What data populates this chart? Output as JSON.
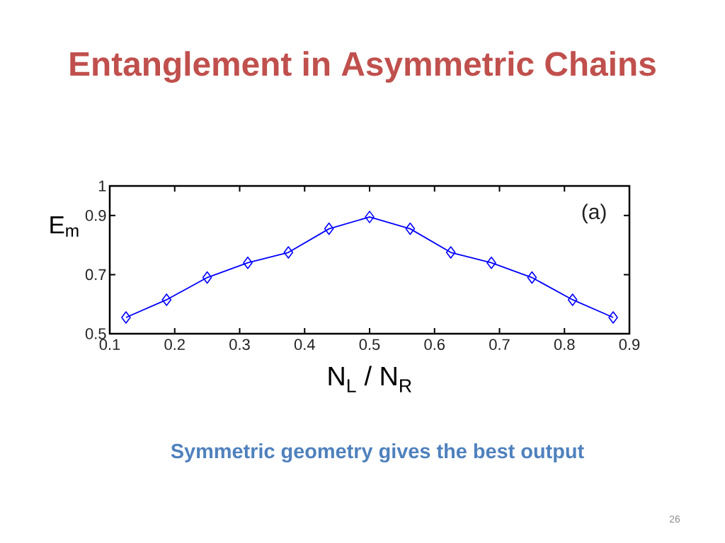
{
  "chart_data": {
    "type": "line",
    "title": "Entanglement in Asymmetric Chains",
    "xlabel": "N$_{L}$ / N$_{R}$",
    "ylabel": "E$_{m}$",
    "x": [
      0.125,
      0.1875,
      0.25,
      0.3125,
      0.375,
      0.4375,
      0.5,
      0.5625,
      0.625,
      0.6875,
      0.75,
      0.8125,
      0.875
    ],
    "series": [
      {
        "color": "#0000ff",
        "values": [
          0.555,
          0.615,
          0.69,
          0.74,
          0.775,
          0.855,
          0.895,
          0.855,
          0.775,
          0.74,
          0.69,
          0.615,
          0.555
        ]
      }
    ],
    "xlim": [
      0.1,
      0.9
    ],
    "ylim": [
      0.5,
      1
    ],
    "xticks": [
      0.1,
      0.2,
      0.3,
      0.4,
      0.5,
      0.6,
      0.7,
      0.8,
      0.9
    ],
    "yticks": [
      0.5,
      0.7,
      0.9,
      1
    ],
    "marker": "diamond",
    "line_style": "solid",
    "annotations": [
      "(a)",
      "Symmetric geometry gives the best output",
      "26"
    ]
  }
}
